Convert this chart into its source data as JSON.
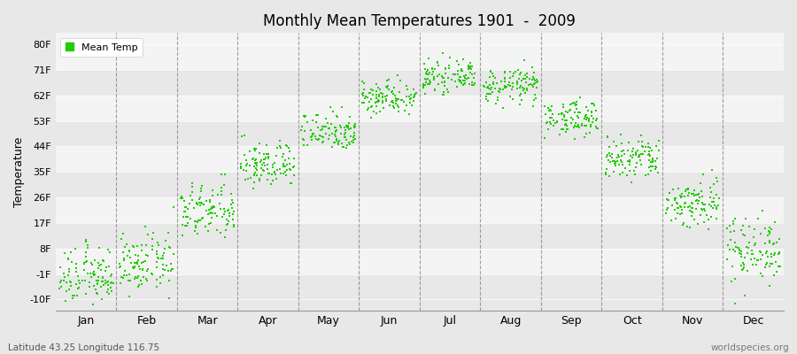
{
  "title": "Monthly Mean Temperatures 1901  -  2009",
  "ylabel": "Temperature",
  "yticks": [
    -10,
    -1,
    8,
    17,
    26,
    35,
    44,
    53,
    62,
    71,
    80
  ],
  "ytick_labels": [
    "-10F",
    "-1F",
    "8F",
    "17F",
    "26F",
    "35F",
    "44F",
    "53F",
    "62F",
    "71F",
    "80F"
  ],
  "ylim": [
    -14,
    84
  ],
  "months": [
    "Jan",
    "Feb",
    "Mar",
    "Apr",
    "May",
    "Jun",
    "Jul",
    "Aug",
    "Sep",
    "Oct",
    "Nov",
    "Dec"
  ],
  "month_means": [
    -2.0,
    2.5,
    21.0,
    37.5,
    49.5,
    61.5,
    68.5,
    65.5,
    54.0,
    39.5,
    24.0,
    8.0
  ],
  "month_spreads": [
    5.0,
    5.0,
    5.0,
    4.0,
    3.5,
    3.0,
    2.5,
    3.0,
    3.0,
    4.0,
    4.5,
    6.0
  ],
  "n_years": 109,
  "dot_color": "#22cc00",
  "dot_size": 2.5,
  "background_color": "#e8e8e8",
  "band_colors": [
    "#e8e8e8",
    "#f4f4f4"
  ],
  "grid_line_color": "#666666",
  "footer_left": "Latitude 43.25 Longitude 116.75",
  "footer_right": "worldspecies.org",
  "legend_label": "Mean Temp"
}
